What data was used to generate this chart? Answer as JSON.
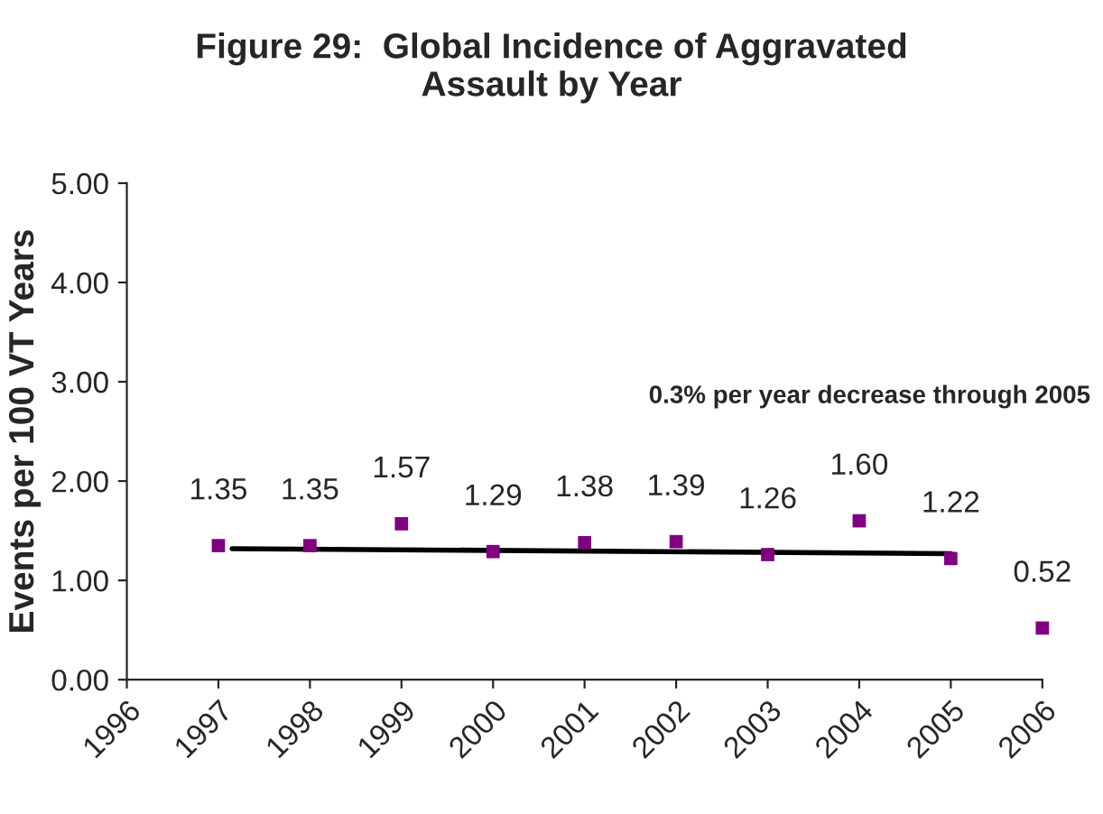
{
  "chart_data": {
    "type": "scatter",
    "title": "Figure 29:  Global Incidence of Aggravated\nAssault by Year",
    "ylabel": "Events per 100 VT Years",
    "x": [
      1997,
      1998,
      1999,
      2000,
      2001,
      2002,
      2003,
      2004,
      2005,
      2006
    ],
    "series": [
      {
        "color": "#800080",
        "marker": "square",
        "values": [
          1.35,
          1.35,
          1.57,
          1.29,
          1.38,
          1.39,
          1.26,
          1.6,
          1.22,
          0.52
        ],
        "value_labels": [
          "1.35",
          "1.35",
          "1.57",
          "1.29",
          "1.38",
          "1.39",
          "1.26",
          "1.60",
          "1.22",
          "0.52"
        ]
      },
      {
        "type": "line",
        "color": "#000000",
        "x": [
          1997.15,
          2005
        ],
        "values": [
          1.32,
          1.27
        ],
        "line_style": "solid",
        "marker": "none"
      }
    ],
    "annotations": [
      "0.3% per year decrease through 2005"
    ],
    "xlim": [
      1996,
      2006
    ],
    "xticks": [
      1996,
      1997,
      1998,
      1999,
      2000,
      2001,
      2002,
      2003,
      2004,
      2005,
      2006
    ],
    "ylim": [
      0,
      5
    ],
    "yticks": [
      {
        "value": 0,
        "label": "0.00"
      },
      {
        "value": 1,
        "label": "1.00"
      },
      {
        "value": 2,
        "label": "2.00"
      },
      {
        "value": 3,
        "label": "3.00"
      },
      {
        "value": 4,
        "label": "4.00"
      },
      {
        "value": 5,
        "label": "5.00"
      }
    ],
    "grid": false,
    "legend": false
  }
}
